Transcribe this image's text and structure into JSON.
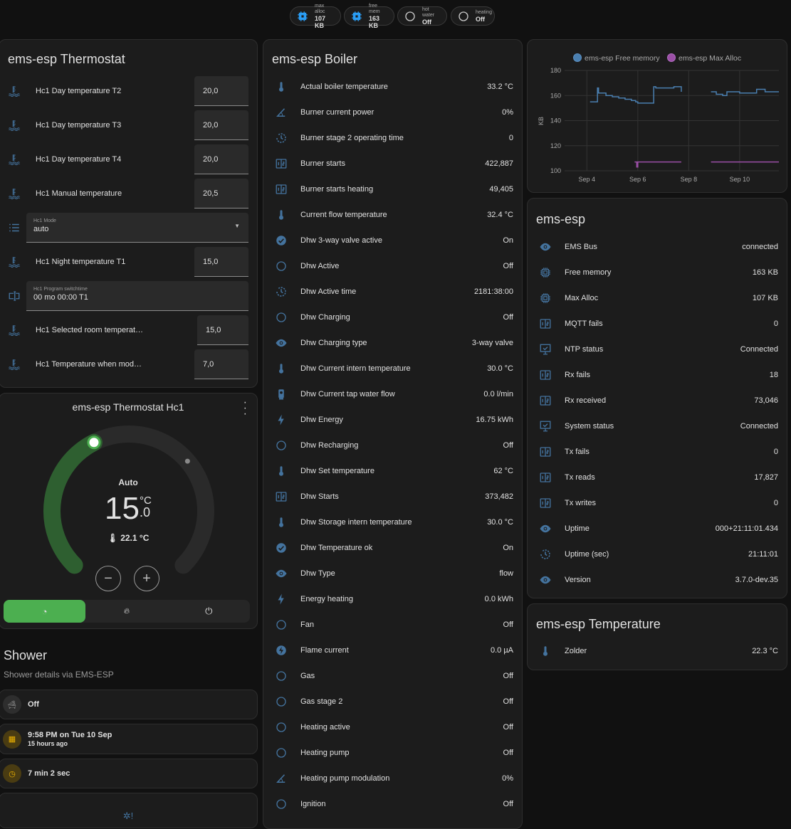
{
  "header": {
    "chips": [
      {
        "label": "max alloc",
        "value": "107 KB",
        "icon": "chip-icon"
      },
      {
        "label": "free mem",
        "value": "163 KB",
        "icon": "chip-icon"
      },
      {
        "label": "hot water",
        "value": "Off",
        "icon": "circle-outline-icon"
      },
      {
        "label": "heating",
        "value": "Off",
        "icon": "circle-outline-icon"
      }
    ]
  },
  "thermostat": {
    "title": "ems-esp Thermostat",
    "rows": [
      {
        "type": "number",
        "icon": "thermostat-water",
        "label": "Hc1 Day temperature T2",
        "value": "20,0"
      },
      {
        "type": "number",
        "icon": "thermostat-water",
        "label": "Hc1 Day temperature T3",
        "value": "20,0"
      },
      {
        "type": "number",
        "icon": "thermostat-water",
        "label": "Hc1 Day temperature T4",
        "value": "20,0"
      },
      {
        "type": "number",
        "icon": "thermostat-water",
        "label": "Hc1 Manual temperature",
        "value": "20,5"
      },
      {
        "type": "select",
        "icon": "list",
        "label": "Hc1 Mode",
        "value": "auto"
      },
      {
        "type": "number",
        "icon": "thermostat-water",
        "label": "Hc1 Night temperature T1",
        "value": "15,0"
      },
      {
        "type": "text",
        "icon": "form-textbox",
        "label": "Hc1 Program switchtime",
        "value": "00 mo 00:00 T1"
      },
      {
        "type": "number",
        "icon": "thermostat-water",
        "label": "Hc1 Selected room temperat…",
        "value": "15,0"
      },
      {
        "type": "number",
        "icon": "thermostat-water",
        "label": "Hc1 Temperature when mod…",
        "value": "7,0"
      }
    ]
  },
  "hc1": {
    "title": "ems-esp Thermostat Hc1",
    "mode": "Auto",
    "target_int": "15",
    "target_dec": ".0",
    "unit": "°C",
    "current": "22.1 °C",
    "min": 5,
    "max": 30,
    "target": 15.0,
    "current_value": 22.1,
    "active_mode": "auto",
    "accent": "#4caf50"
  },
  "shower": {
    "title": "Shower",
    "subtitle": "Shower details via EMS-ESP",
    "state": "Off",
    "last_time": "9:58 PM on Tue 10 Sep",
    "last_ago": "15 hours ago",
    "duration": "7 min 2 sec",
    "accent": "#f0b400"
  },
  "boiler": {
    "title": "ems-esp Boiler",
    "rows": [
      {
        "icon": "thermometer",
        "label": "Actual boiler temperature",
        "value": "33.2 °C"
      },
      {
        "icon": "angle",
        "label": "Burner current power",
        "value": "0%"
      },
      {
        "icon": "history",
        "label": "Burner stage 2 operating time",
        "value": "0"
      },
      {
        "icon": "counter",
        "label": "Burner starts",
        "value": "422,887"
      },
      {
        "icon": "counter",
        "label": "Burner starts heating",
        "value": "49,405"
      },
      {
        "icon": "thermometer",
        "label": "Current flow temperature",
        "value": "32.4 °C"
      },
      {
        "icon": "check-circle",
        "label": "Dhw 3-way valve active",
        "value": "On"
      },
      {
        "icon": "circle-outline",
        "label": "Dhw Active",
        "value": "Off"
      },
      {
        "icon": "history",
        "label": "Dhw Active time",
        "value": "2181:38:00"
      },
      {
        "icon": "circle-outline",
        "label": "Dhw Charging",
        "value": "Off"
      },
      {
        "icon": "eye",
        "label": "Dhw Charging type",
        "value": "3-way valve"
      },
      {
        "icon": "thermometer",
        "label": "Dhw Current intern temperature",
        "value": "30.0 °C"
      },
      {
        "icon": "water-pump",
        "label": "Dhw Current tap water flow",
        "value": "0.0 l/min"
      },
      {
        "icon": "flash",
        "label": "Dhw Energy",
        "value": "16.75 kWh"
      },
      {
        "icon": "circle-outline",
        "label": "Dhw Recharging",
        "value": "Off"
      },
      {
        "icon": "thermometer",
        "label": "Dhw Set temperature",
        "value": "62 °C"
      },
      {
        "icon": "counter",
        "label": "Dhw Starts",
        "value": "373,482"
      },
      {
        "icon": "thermometer",
        "label": "Dhw Storage intern temperature",
        "value": "30.0 °C"
      },
      {
        "icon": "check-circle",
        "label": "Dhw Temperature ok",
        "value": "On"
      },
      {
        "icon": "eye",
        "label": "Dhw Type",
        "value": "flow"
      },
      {
        "icon": "flash",
        "label": "Energy heating",
        "value": "0.0 kWh"
      },
      {
        "icon": "circle-outline",
        "label": "Fan",
        "value": "Off"
      },
      {
        "icon": "flash-circle",
        "label": "Flame current",
        "value": "0.0 µA"
      },
      {
        "icon": "circle-outline",
        "label": "Gas",
        "value": "Off"
      },
      {
        "icon": "circle-outline",
        "label": "Gas stage 2",
        "value": "Off"
      },
      {
        "icon": "circle-outline",
        "label": "Heating active",
        "value": "Off"
      },
      {
        "icon": "circle-outline",
        "label": "Heating pump",
        "value": "Off"
      },
      {
        "icon": "angle",
        "label": "Heating pump modulation",
        "value": "0%"
      },
      {
        "icon": "circle-outline",
        "label": "Ignition",
        "value": "Off"
      }
    ]
  },
  "system": {
    "title": "ems-esp",
    "rows": [
      {
        "icon": "eye",
        "label": "EMS Bus",
        "value": "connected"
      },
      {
        "icon": "chip",
        "label": "Free memory",
        "value": "163 KB"
      },
      {
        "icon": "chip",
        "label": "Max Alloc",
        "value": "107 KB"
      },
      {
        "icon": "counter",
        "label": "MQTT fails",
        "value": "0"
      },
      {
        "icon": "monitor-check",
        "label": "NTP status",
        "value": "Connected"
      },
      {
        "icon": "counter",
        "label": "Rx fails",
        "value": "18"
      },
      {
        "icon": "counter",
        "label": "Rx received",
        "value": "73,046"
      },
      {
        "icon": "monitor-check",
        "label": "System status",
        "value": "Connected"
      },
      {
        "icon": "counter",
        "label": "Tx fails",
        "value": "0"
      },
      {
        "icon": "counter",
        "label": "Tx reads",
        "value": "17,827"
      },
      {
        "icon": "counter",
        "label": "Tx writes",
        "value": "0"
      },
      {
        "icon": "eye",
        "label": "Uptime",
        "value": "000+21:11:01.434"
      },
      {
        "icon": "history",
        "label": "Uptime (sec)",
        "value": "21:11:01"
      },
      {
        "icon": "eye",
        "label": "Version",
        "value": "3.7.0-dev.35"
      }
    ]
  },
  "temperature": {
    "title": "ems-esp Temperature",
    "rows": [
      {
        "icon": "thermometer",
        "label": "Zolder",
        "value": "22.3 °C"
      }
    ]
  },
  "chart_data": {
    "type": "line",
    "ylabel": "KB",
    "ylim": [
      100,
      180
    ],
    "yticks": [
      "100",
      "120",
      "140",
      "160",
      "180"
    ],
    "xticks": [
      "Sep 4",
      "Sep 6",
      "Sep 8",
      "Sep 10"
    ],
    "xlim": [
      "Sep 3 03:00",
      "Sep 11 13:00"
    ],
    "grid": true,
    "legend": "top",
    "series": [
      {
        "name": "ems-esp Free memory",
        "color": "#4a7fb0",
        "segments": [
          [
            [
              "Sep 4 03:00",
              155
            ],
            [
              "Sep 4 10:00",
              166
            ],
            [
              "Sep 4 11:00",
              162
            ],
            [
              "Sep 4 18:00",
              160
            ],
            [
              "Sep 5 00:00",
              159
            ],
            [
              "Sep 5 06:00",
              158
            ],
            [
              "Sep 5 12:00",
              157
            ],
            [
              "Sep 5 18:00",
              156
            ],
            [
              "Sep 5 22:00",
              155
            ],
            [
              "Sep 6 00:00",
              154
            ],
            [
              "Sep 6 15:00",
              167
            ],
            [
              "Sep 6 17:00",
              166
            ],
            [
              "Sep 7 10:00",
              167
            ],
            [
              "Sep 7 17:00",
              163
            ]
          ],
          [
            [
              "Sep 8 21:00",
              163
            ],
            [
              "Sep 9 02:00",
              161
            ],
            [
              "Sep 9 08:00",
              160
            ],
            [
              "Sep 9 12:00",
              163
            ],
            [
              "Sep 10 00:00",
              162
            ],
            [
              "Sep 10 16:00",
              165
            ],
            [
              "Sep 11 00:00",
              163
            ],
            [
              "Sep 11 13:00",
              163
            ]
          ]
        ]
      },
      {
        "name": "ems-esp Max Alloc",
        "color": "#9b4fa6",
        "segments": [
          [
            [
              "Sep 5 21:00",
              107
            ],
            [
              "Sep 5 23:00",
              103
            ],
            [
              "Sep 6 00:00",
              107
            ],
            [
              "Sep 7 17:00",
              107
            ]
          ],
          [
            [
              "Sep 8 21:00",
              107
            ],
            [
              "Sep 11 13:00",
              107
            ]
          ]
        ]
      }
    ]
  }
}
